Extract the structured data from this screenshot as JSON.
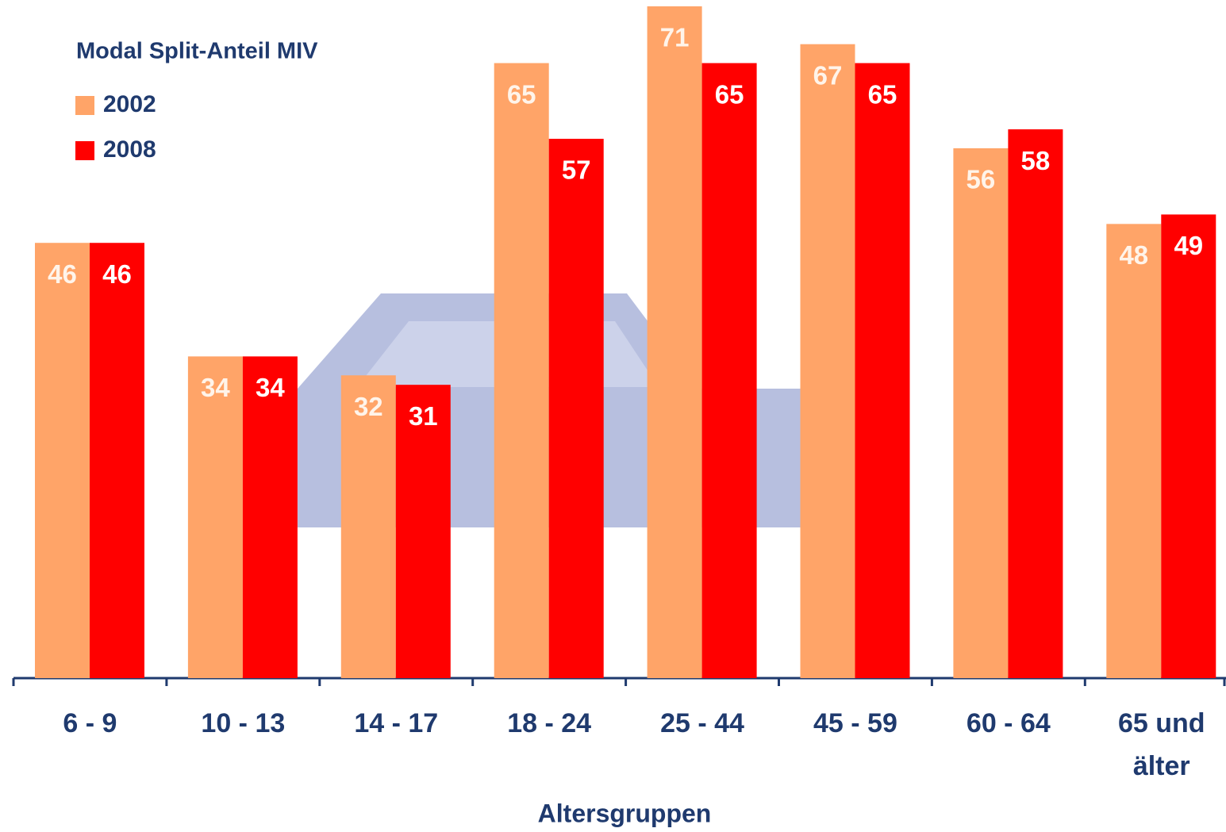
{
  "chart_data": {
    "type": "bar",
    "title": "Modal Split-Anteil MIV",
    "x_label": "Altersgruppen",
    "categories": [
      "6 - 9",
      "10 - 13",
      "14 - 17",
      "18 - 24",
      "25 - 44",
      "45 - 59",
      "60 - 64",
      "65 und älter"
    ],
    "series": [
      {
        "name": "2002",
        "color": "#ffa468",
        "label_color": "#fff4ea",
        "values": [
          46,
          34,
          32,
          65,
          71,
          67,
          56,
          48
        ]
      },
      {
        "name": "2008",
        "color": "#ff0000",
        "label_color": "#ffffff",
        "values": [
          46,
          34,
          31,
          57,
          65,
          65,
          58,
          49
        ]
      }
    ]
  }
}
